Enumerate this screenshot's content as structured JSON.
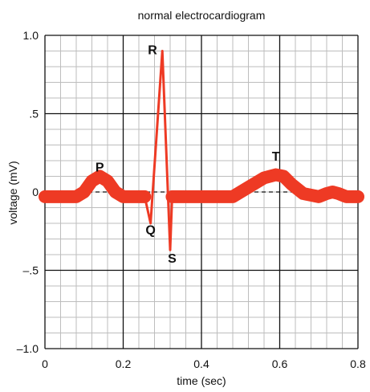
{
  "colors": {
    "trace": "#ee3a24",
    "grid_minor": "#bdbdbd",
    "grid_major": "#111111",
    "text": "#111111",
    "background": "#ffffff"
  },
  "chart_data": {
    "type": "line",
    "title": "normal electrocardiogram",
    "xlabel": "time (sec)",
    "ylabel": "voltage (mV)",
    "xlim": [
      0,
      0.8
    ],
    "ylim": [
      -1.0,
      1.0
    ],
    "x_ticks": [
      {
        "value": 0,
        "label": "0"
      },
      {
        "value": 0.2,
        "label": "0.2"
      },
      {
        "value": 0.4,
        "label": "0.4"
      },
      {
        "value": 0.6,
        "label": "0.6"
      },
      {
        "value": 0.8,
        "label": "0.8"
      }
    ],
    "y_ticks": [
      {
        "value": 1.0,
        "label": "1.0"
      },
      {
        "value": 0.5,
        "label": ".5"
      },
      {
        "value": 0,
        "label": "0"
      },
      {
        "value": -0.5,
        "label": "–.5"
      },
      {
        "value": -1.0,
        "label": "–1.0"
      }
    ],
    "grid": true,
    "minor_grid_x_step": 0.04,
    "minor_grid_y_step": 0.1,
    "baseline": 0,
    "series": [
      {
        "name": "",
        "thick_segments": [
          {
            "x": [
              0.0,
              0.08,
              0.1,
              0.12,
              0.14,
              0.16,
              0.18,
              0.2,
              0.255
            ],
            "y": [
              -0.03,
              -0.03,
              0.0,
              0.07,
              0.1,
              0.07,
              0.0,
              -0.03,
              -0.03
            ]
          },
          {
            "x": [
              0.325,
              0.48,
              0.52,
              0.56,
              0.59,
              0.61,
              0.63,
              0.66,
              0.7,
              0.72,
              0.735,
              0.75,
              0.77,
              0.8
            ],
            "y": [
              -0.03,
              -0.03,
              0.03,
              0.09,
              0.11,
              0.1,
              0.05,
              -0.01,
              -0.03,
              -0.01,
              0.0,
              -0.01,
              -0.03,
              -0.03
            ]
          }
        ],
        "qrs": {
          "x": [
            0.255,
            0.27,
            0.3,
            0.32,
            0.325
          ],
          "y": [
            -0.03,
            -0.2,
            0.9,
            -0.37,
            -0.03
          ]
        }
      }
    ],
    "annotations": [
      {
        "label": "P",
        "x": 0.14,
        "y": 0.13
      },
      {
        "label": "Q",
        "x": 0.27,
        "y": -0.27
      },
      {
        "label": "R",
        "x": 0.275,
        "y": 0.88
      },
      {
        "label": "S",
        "x": 0.325,
        "y": -0.45
      },
      {
        "label": "T",
        "x": 0.59,
        "y": 0.2
      }
    ]
  }
}
